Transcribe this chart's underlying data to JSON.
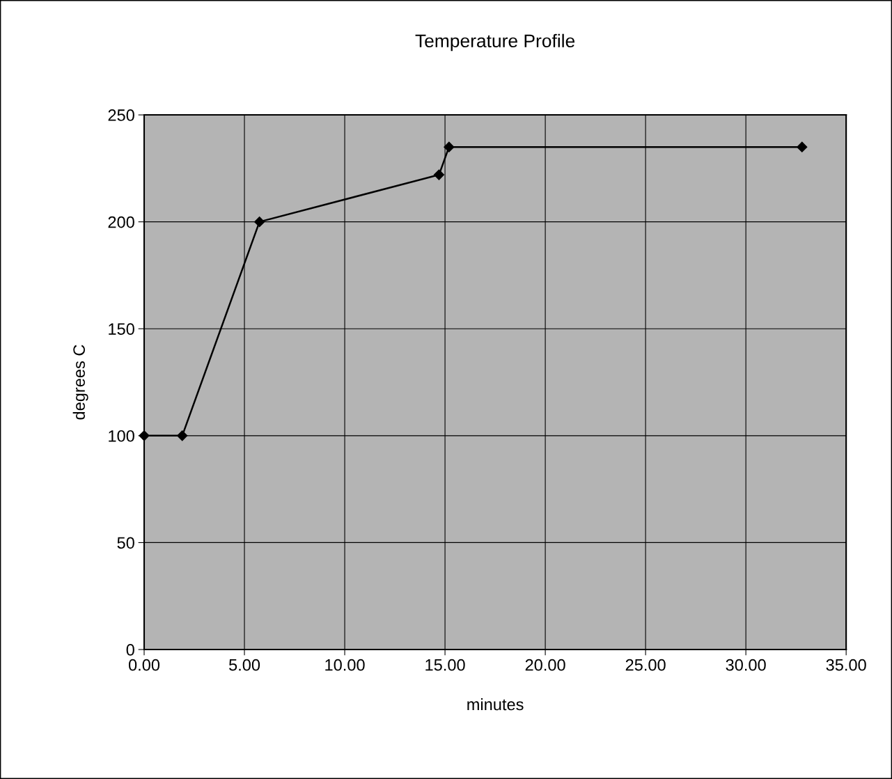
{
  "chart_data": {
    "type": "line",
    "title": "Temperature Profile",
    "xlabel": "minutes",
    "ylabel": "degrees C",
    "x": [
      0,
      1.9,
      5.75,
      14.7,
      15.2,
      32.8
    ],
    "series": [
      {
        "color": "#000000",
        "values": [
          100,
          100,
          200,
          222,
          235,
          235
        ]
      }
    ],
    "marker": "diamond",
    "line_style": "solid",
    "grid": true,
    "xlim": [
      0,
      35
    ],
    "ylim": [
      0,
      250
    ],
    "xticks": [
      {
        "value": 0,
        "label": "0.00"
      },
      {
        "value": 5,
        "label": "5.00"
      },
      {
        "value": 10,
        "label": "10.00"
      },
      {
        "value": 15,
        "label": "15.00"
      },
      {
        "value": 20,
        "label": "20.00"
      },
      {
        "value": 25,
        "label": "25.00"
      },
      {
        "value": 30,
        "label": "30.00"
      },
      {
        "value": 35,
        "label": "35.00"
      }
    ],
    "yticks": [
      0,
      50,
      100,
      150,
      200,
      250
    ]
  }
}
